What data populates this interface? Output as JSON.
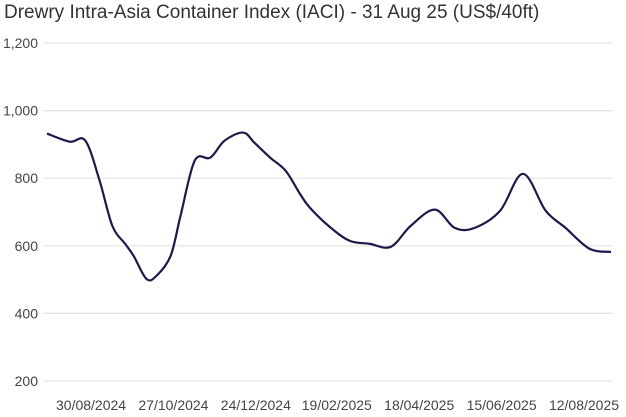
{
  "chart_data": {
    "type": "line",
    "title": "Drewry Intra-Asia Container Index (IACI) - 31 Aug 25 (US$/40ft)",
    "xlabel": "",
    "ylabel": "",
    "ylim": [
      200,
      1200
    ],
    "yticks": [
      200,
      400,
      600,
      800,
      1000,
      1200
    ],
    "ytick_labels": [
      "200",
      "400",
      "600",
      "800",
      "1,000",
      "1,200"
    ],
    "xlim": [
      "2024-07-30",
      "2025-08-31"
    ],
    "xticks": [
      "2024-08-30",
      "2024-10-27",
      "2024-12-24",
      "2025-02-19",
      "2025-04-18",
      "2025-06-15",
      "2025-08-12"
    ],
    "xtick_labels": [
      "30/08/2024",
      "27/10/2024",
      "24/12/2024",
      "19/02/2025",
      "18/04/2025",
      "15/06/2025",
      "12/08/2025"
    ],
    "grid": "horizontal",
    "line_color": "#1c1a4a",
    "series": [
      {
        "x": [
          "2024-07-30",
          "2024-08-15",
          "2024-08-26",
          "2024-09-05",
          "2024-09-14",
          "2024-09-23",
          "2024-09-29",
          "2024-10-08",
          "2024-10-15",
          "2024-10-25",
          "2024-11-01",
          "2024-11-11",
          "2024-11-22",
          "2024-12-02",
          "2024-12-15",
          "2024-12-23",
          "2025-01-03",
          "2025-01-14",
          "2025-01-24",
          "2025-01-31",
          "2025-02-14",
          "2025-02-28",
          "2025-03-14",
          "2025-03-29",
          "2025-04-12",
          "2025-04-29",
          "2025-05-13",
          "2025-05-27",
          "2025-06-14",
          "2025-06-30",
          "2025-07-16",
          "2025-07-30",
          "2025-08-16",
          "2025-08-31"
        ],
        "values": [
          932,
          908,
          911,
          793,
          659,
          606,
          570,
          502,
          511,
          570,
          689,
          852,
          861,
          911,
          935,
          905,
          861,
          822,
          754,
          713,
          656,
          615,
          606,
          597,
          659,
          707,
          653,
          653,
          704,
          813,
          704,
          653,
          591,
          582
        ]
      }
    ]
  }
}
